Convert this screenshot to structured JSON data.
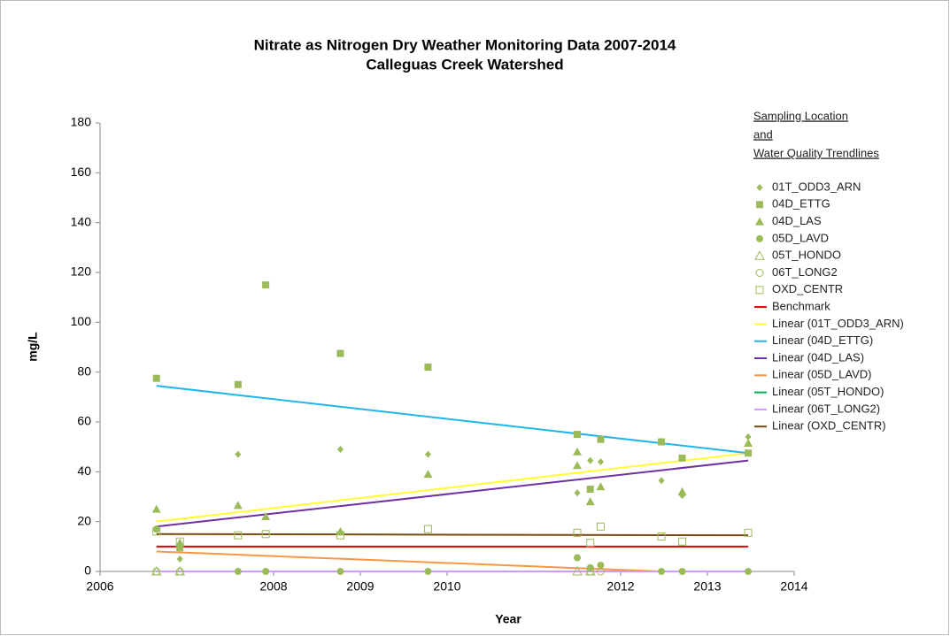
{
  "chart_data": {
    "type": "scatter",
    "title": [
      "Nitrate as Nitrogen Dry Weather Monitoring Data 2007-2014",
      "Calleguas Creek Watershed"
    ],
    "x_label": "Year",
    "y_label": "mg/L",
    "legend_title": [
      "Sampling Location",
      "and",
      "Water Quality Trendlines"
    ],
    "xlim": [
      2006,
      2014
    ],
    "xticks": [
      2006,
      2008,
      2009,
      2010,
      2012,
      2013,
      2014
    ],
    "ylim": [
      0,
      180
    ],
    "yticks": [
      0,
      20,
      40,
      60,
      80,
      100,
      120,
      140,
      160,
      180
    ],
    "legend": "right",
    "series": [
      {
        "name": "01T_ODD3_ARN",
        "color": "#9bbb59",
        "marker": "diamond",
        "x": [
          2006.92,
          2007.59,
          2008.77,
          2009.78,
          2011.5,
          2011.65,
          2011.77,
          2012.47,
          2012.71,
          2013.47
        ],
        "values": [
          5,
          47,
          49,
          47,
          31.5,
          44.5,
          44,
          36.5,
          30.5,
          54
        ]
      },
      {
        "name": "04D_ETTG",
        "color": "#9bbb59",
        "marker": "square",
        "x": [
          2006.65,
          2006.92,
          2007.59,
          2007.91,
          2008.77,
          2009.78,
          2011.5,
          2011.65,
          2011.77,
          2012.47,
          2012.71,
          2013.47
        ],
        "values": [
          77.5,
          9.5,
          75,
          115,
          87.5,
          82,
          55,
          33,
          53,
          52,
          45.5,
          47.5
        ]
      },
      {
        "name": "04D_LAS",
        "color": "#9bbb59",
        "marker": "triangle",
        "x": [
          2006.65,
          2006.92,
          2007.59,
          2007.91,
          2008.77,
          2009.78,
          2011.5,
          2011.5,
          2011.65,
          2011.77,
          2012.71,
          2013.47
        ],
        "values": [
          25,
          11.5,
          26.5,
          22,
          16,
          39,
          48,
          42.5,
          28,
          34,
          32,
          51.5
        ]
      },
      {
        "name": "05D_LAVD",
        "color": "#9bbb59",
        "marker": "circle",
        "x": [
          2006.65,
          2007.59,
          2007.91,
          2008.77,
          2009.78,
          2011.5,
          2011.65,
          2011.77,
          2012.47,
          2012.71,
          2013.47
        ],
        "values": [
          17,
          0,
          0,
          0,
          0,
          5.5,
          1.5,
          2.5,
          0,
          0,
          0
        ]
      },
      {
        "name": "05T_HONDO",
        "color": "#9bbb59",
        "marker": "triangle-open",
        "x": [
          2006.65,
          2006.92,
          2011.5,
          2011.65
        ],
        "values": [
          0,
          0,
          0,
          0
        ]
      },
      {
        "name": "06T_LONG2",
        "color": "#9bbb59",
        "marker": "circle-open",
        "x": [
          2006.65,
          2006.92,
          2011.65,
          2011.77
        ],
        "values": [
          0,
          0,
          0,
          0
        ]
      },
      {
        "name": "OXD_CENTR",
        "color": "#9bbb59",
        "marker": "square-open",
        "x": [
          2006.65,
          2006.92,
          2007.59,
          2007.91,
          2008.77,
          2009.78,
          2011.5,
          2011.65,
          2011.77,
          2012.47,
          2012.71,
          2013.47
        ],
        "values": [
          16,
          12,
          14.5,
          15,
          14.5,
          17,
          15.5,
          11.5,
          18,
          14,
          12,
          15.5
        ]
      },
      {
        "name": "Benchmark",
        "color": "#e00000",
        "marker": "line",
        "x": [
          2006.65,
          2013.47
        ],
        "values": [
          10,
          10
        ]
      },
      {
        "name": "Linear (01T_ODD3_ARN)",
        "color": "#ffff33",
        "marker": "line",
        "x": [
          2006.65,
          2013.47
        ],
        "values": [
          20,
          47.5
        ]
      },
      {
        "name": "Linear (04D_ETTG)",
        "color": "#1eb4ec",
        "marker": "line",
        "x": [
          2006.65,
          2013.47
        ],
        "values": [
          74.5,
          47.5
        ]
      },
      {
        "name": "Linear (04D_LAS)",
        "color": "#7030a0",
        "marker": "line",
        "x": [
          2006.65,
          2013.47
        ],
        "values": [
          18,
          44.5
        ]
      },
      {
        "name": "Linear (05D_LAVD)",
        "color": "#f79646",
        "marker": "line",
        "x": [
          2006.65,
          2012.47
        ],
        "values": [
          8,
          0
        ]
      },
      {
        "name": "Linear (05T_HONDO)",
        "color": "#00b050",
        "marker": "line",
        "x": [
          2006.65,
          2013.47
        ],
        "values": [
          0,
          0
        ]
      },
      {
        "name": "Linear (06T_LONG2)",
        "color": "#cc99ff",
        "marker": "line",
        "x": [
          2006.65,
          2013.47
        ],
        "values": [
          0,
          0
        ]
      },
      {
        "name": "Linear (OXD_CENTR)",
        "color": "#7b4a12",
        "marker": "line",
        "x": [
          2006.65,
          2013.47
        ],
        "values": [
          15,
          14.5
        ]
      }
    ]
  }
}
